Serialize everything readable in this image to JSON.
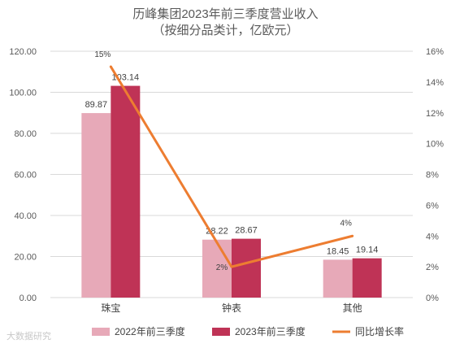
{
  "chart_data": {
    "type": "bar",
    "title": "历峰集团2023年前三季度营业收入",
    "subtitle": "（按细分品类计，亿欧元）",
    "categories": [
      "珠宝",
      "钟表",
      "其他"
    ],
    "series": [
      {
        "name": "2022年前三季度",
        "type": "bar",
        "axis": "left",
        "color": "#e7a9b8",
        "values": [
          89.87,
          28.22,
          18.45
        ],
        "labels": [
          "89.87",
          "28.22",
          "18.45"
        ]
      },
      {
        "name": "2023年前三季度",
        "type": "bar",
        "axis": "left",
        "color": "#bf3356",
        "values": [
          103.14,
          28.67,
          19.14
        ],
        "labels": [
          "103.14",
          "28.67",
          "19.14"
        ]
      },
      {
        "name": "同比增长率",
        "type": "line",
        "axis": "right",
        "color": "#ed7d31",
        "values": [
          15,
          2,
          4
        ],
        "labels": [
          "15%",
          "2%",
          "4%"
        ]
      }
    ],
    "left_axis": {
      "min": 0,
      "max": 120,
      "ticks": [
        "0.00",
        "20.00",
        "40.00",
        "60.00",
        "80.00",
        "100.00",
        "120.00"
      ]
    },
    "right_axis": {
      "min": 0,
      "max": 16,
      "ticks": [
        "0%",
        "2%",
        "4%",
        "6%",
        "8%",
        "10%",
        "12%",
        "14%",
        "16%"
      ]
    },
    "grid": true,
    "legend_position": "bottom"
  },
  "watermark": "大数据研究"
}
